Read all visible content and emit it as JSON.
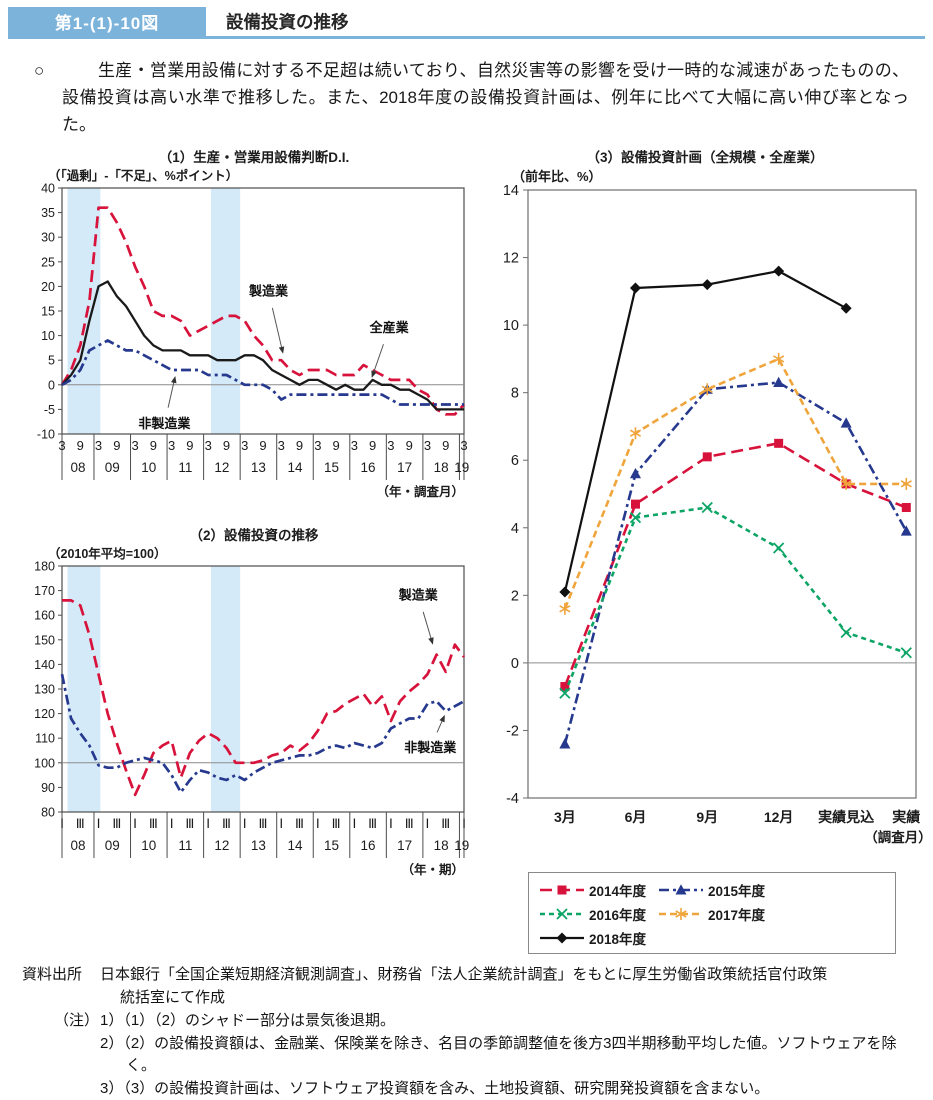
{
  "header": {
    "figure_label": "第1-(1)-10図",
    "title": "設備投資の推移"
  },
  "intro": {
    "bullet": "○",
    "text": "生産・営業用設備に対する不足超は続いており、自然災害等の影響を受け一時的な減速があったものの、設備投資は高い水準で推移した。また、2018年度の設備投資計画は、例年に比べて大幅に高い伸び率となった。"
  },
  "colors": {
    "accent_blue": "#7cb3db",
    "recession_band_blue": "#d5eaf8",
    "manufacturing_red": "#d7123b",
    "nonmanufacturing_navy": "#26398e",
    "all_industry_black": "#1a1a1a",
    "fy2016_green": "#0da566",
    "fy2017_orange": "#f0a53c",
    "fy2018_black": "#111111"
  },
  "chart_data": [
    {
      "type": "line",
      "title": "（1）生産・営業用設備判断D.I.",
      "unit_label": "（「過剰」-「不足」、%ポイント）",
      "xaxis_caption": "（年・調査月）",
      "ylim": [
        -10,
        40
      ],
      "ytick_step": 5,
      "baseline": 0,
      "grid": false,
      "years": [
        "08",
        "09",
        "10",
        "11",
        "12",
        "13",
        "14",
        "15",
        "16",
        "17",
        "18",
        "19"
      ],
      "quarter_labels": [
        "3",
        "9"
      ],
      "recession_bands_q": [
        [
          0.6,
          4.2
        ],
        [
          16.3,
          19.5
        ]
      ],
      "series": [
        {
          "name": "製造業",
          "key": "manufacturing",
          "color": "#d7123b",
          "style": "dashed",
          "values": [
            0,
            3,
            8,
            17,
            36,
            36,
            33,
            29,
            24,
            20,
            15,
            14,
            14,
            13,
            10,
            11,
            12,
            13,
            14,
            14,
            13,
            10,
            8,
            5,
            5,
            3,
            2,
            3,
            3,
            3,
            2,
            2,
            2,
            4,
            3,
            2,
            1,
            1,
            1,
            -1,
            -2,
            -5,
            -6,
            -6,
            -4
          ]
        },
        {
          "name": "全産業",
          "key": "all-industries",
          "color": "#1a1a1a",
          "style": "solid",
          "values": [
            0,
            2,
            5,
            13,
            20,
            21,
            18,
            16,
            13,
            10,
            8,
            7,
            7,
            7,
            6,
            6,
            6,
            5,
            5,
            5,
            6,
            6,
            5,
            3,
            2,
            1,
            0,
            1,
            1,
            0,
            -1,
            0,
            -1,
            -1,
            1,
            0,
            0,
            -1,
            -1,
            -2,
            -3,
            -5,
            -5,
            -5,
            -5
          ]
        },
        {
          "name": "非製造業",
          "key": "non-manufacturing",
          "color": "#26398e",
          "style": "dashdot",
          "values": [
            0,
            1,
            3,
            7,
            8,
            9,
            8,
            7,
            7,
            6,
            5,
            4,
            3,
            3,
            3,
            3,
            2,
            2,
            2,
            1,
            0,
            0,
            0,
            -1,
            -3,
            -2,
            -2,
            -2,
            -2,
            -2,
            -2,
            -2,
            -2,
            -2,
            -2,
            -2,
            -3,
            -4,
            -4,
            -4,
            -4,
            -4,
            -4,
            -4,
            -4
          ]
        }
      ],
      "annotations": [
        {
          "text": "製造業",
          "label_q": 22.6,
          "label_v": 19.0,
          "tip_q": 24.2,
          "tip_v": 6.3
        },
        {
          "text": "全産業",
          "label_q": 35.8,
          "label_v": 11.5,
          "tip_q": 33.9,
          "tip_v": 1.4
        },
        {
          "text": "非製造業",
          "label_q": 11.2,
          "label_v": -8.0,
          "tip_q": 12.4,
          "tip_v": 1.8
        }
      ]
    },
    {
      "type": "line",
      "title": "（2）設備投資の推移",
      "unit_label": "（2010年平均=100）",
      "xaxis_caption": "（年・期）",
      "ylim": [
        80,
        180
      ],
      "ytick_step": 10,
      "baseline": 100,
      "grid": false,
      "years": [
        "08",
        "09",
        "10",
        "11",
        "12",
        "13",
        "14",
        "15",
        "16",
        "17",
        "18",
        "19"
      ],
      "quarter_labels": [
        "Ⅰ",
        "Ⅲ"
      ],
      "recession_bands_q": [
        [
          0.6,
          4.2
        ],
        [
          16.3,
          19.5
        ]
      ],
      "series": [
        {
          "name": "製造業",
          "key": "manufacturing",
          "color": "#d7123b",
          "style": "dashed",
          "values": [
            166,
            166,
            164,
            152,
            136,
            120,
            108,
            97,
            87,
            95,
            104,
            107,
            109,
            94,
            104,
            109,
            112,
            110,
            106,
            100,
            100,
            100,
            101,
            103,
            104,
            107,
            105,
            108,
            113,
            120,
            121,
            124,
            126,
            128,
            123,
            127,
            117,
            125,
            129,
            132,
            136,
            144,
            137,
            148,
            143
          ]
        },
        {
          "name": "非製造業",
          "key": "non-manufacturing",
          "color": "#26398e",
          "style": "dashdot",
          "values": [
            136,
            118,
            112,
            107,
            99,
            98,
            98,
            100,
            101,
            102,
            101,
            100,
            95,
            88,
            93,
            97,
            96,
            94,
            93,
            95,
            93,
            96,
            98,
            100,
            101,
            102,
            103,
            103,
            104,
            106,
            107,
            106,
            108,
            107,
            106,
            108,
            114,
            116,
            118,
            118,
            124,
            125,
            121,
            123,
            125
          ]
        }
      ],
      "annotations": [
        {
          "text": "製造業",
          "label_q": 39.0,
          "label_v": 168.0,
          "tip_q": 40.6,
          "tip_v": 148.0
        },
        {
          "text": "非製造業",
          "label_q": 40.3,
          "label_v": 106.0,
          "tip_q": 41.9,
          "tip_v": 119.5
        }
      ]
    },
    {
      "type": "line",
      "title": "（3）設備投資計画（全規模・全産業）",
      "unit_label": "（前年比、%）",
      "xaxis_caption": "（調査月）",
      "ylim": [
        -4,
        14
      ],
      "ytick_step": 2,
      "baseline": 0,
      "grid": false,
      "categories": [
        "3月",
        "6月",
        "9月",
        "12月",
        "実績見込",
        "実績"
      ],
      "series": [
        {
          "name": "2014年度",
          "key": "fy2014",
          "color": "#d7123b",
          "style": "dashed",
          "marker": "square",
          "values": [
            -0.7,
            4.7,
            6.1,
            6.5,
            5.3,
            4.6
          ]
        },
        {
          "name": "2015年度",
          "key": "fy2015",
          "color": "#26398e",
          "style": "dashdot",
          "marker": "triangle",
          "values": [
            -2.4,
            5.6,
            8.1,
            8.3,
            7.1,
            3.9
          ]
        },
        {
          "name": "2016年度",
          "key": "fy2016",
          "color": "#0da566",
          "style": "dashed-short",
          "marker": "x",
          "values": [
            -0.9,
            4.3,
            4.6,
            3.4,
            0.9,
            0.3
          ]
        },
        {
          "name": "2017年度",
          "key": "fy2017",
          "color": "#f0a53c",
          "style": "dashed-med",
          "marker": "asterisk",
          "values": [
            1.6,
            6.8,
            8.1,
            9.0,
            5.3,
            5.3
          ]
        },
        {
          "name": "2018年度",
          "key": "fy2018",
          "color": "#111111",
          "style": "solid",
          "marker": "diamond",
          "values": [
            2.1,
            11.1,
            11.2,
            11.6,
            10.5
          ]
        }
      ],
      "legend_position": "bottom"
    }
  ],
  "footer": {
    "source_label": "資料出所",
    "source_line1": "日本銀行「全国企業短期経済観測調査」、財務省「法人企業統計調査」をもとに厚生労働省政策統括官付政策",
    "source_line2": "統括室にて作成",
    "note_label": "（注）",
    "notes": [
      "1）（1）（2）のシャドー部分は景気後退期。",
      "2）（2）の設備投資額は、金融業、保険業を除き、名目の季節調整値を後方3四半期移動平均した値。ソフトウェアを除く。",
      "3）（3）の設備投資計画は、ソフトウェア投資額を含み、土地投資額、研究開発投資額を含まない。"
    ]
  }
}
